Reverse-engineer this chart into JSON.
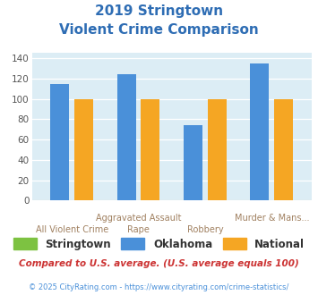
{
  "title_line1": "2019 Stringtown",
  "title_line2": "Violent Crime Comparison",
  "title_color": "#2e6db4",
  "groups": [
    {
      "label_top": "",
      "label_bot": "All Violent Crime",
      "stringtown": 0,
      "oklahoma": 115,
      "national": 100
    },
    {
      "label_top": "Aggravated Assault",
      "label_bot": "Rape",
      "stringtown": 0,
      "oklahoma": 124,
      "national": 100
    },
    {
      "label_top": "",
      "label_bot": "Robbery",
      "stringtown": 0,
      "oklahoma": 74,
      "national": 100
    },
    {
      "label_top": "Murder & Mans...",
      "label_bot": "",
      "stringtown": 0,
      "oklahoma": 135,
      "national": 100
    }
  ],
  "color_stringtown": "#7dc241",
  "color_oklahoma": "#4a90d9",
  "color_national": "#f5a623",
  "ylim": [
    0,
    145
  ],
  "yticks": [
    0,
    20,
    40,
    60,
    80,
    100,
    120,
    140
  ],
  "bg_color": "#dcedf5",
  "legend_label_stringtown": "Stringtown",
  "legend_label_oklahoma": "Oklahoma",
  "legend_label_national": "National",
  "footnote1": "Compared to U.S. average. (U.S. average equals 100)",
  "footnote2": "© 2025 CityRating.com - https://www.cityrating.com/crime-statistics/",
  "footnote1_color": "#cc3333",
  "footnote2_color": "#4a90d9",
  "label_color": "#a08060"
}
